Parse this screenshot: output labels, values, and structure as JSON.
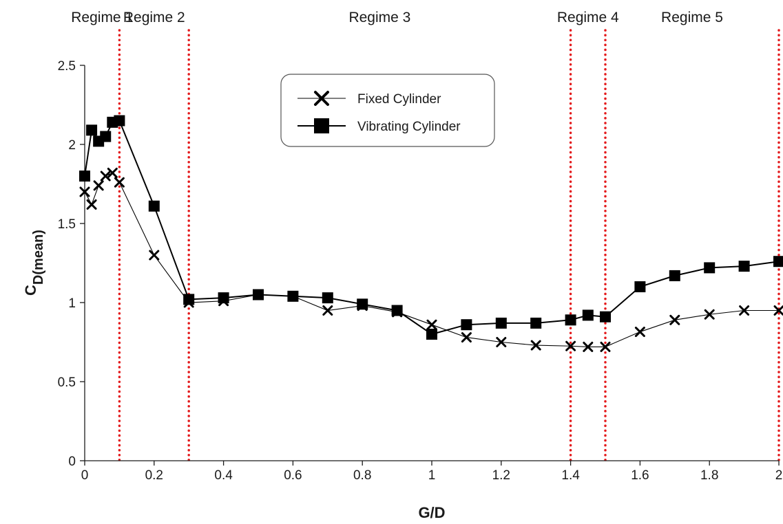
{
  "chart_data": {
    "type": "line",
    "title": "",
    "xlabel": "G/D",
    "ylabel_main": "C",
    "ylabel_sub": "D(mean)",
    "xlim": [
      0,
      2
    ],
    "ylim": [
      0,
      2.5
    ],
    "x_ticks": [
      0,
      0.2,
      0.4,
      0.6,
      0.8,
      1,
      1.2,
      1.4,
      1.6,
      1.8,
      2
    ],
    "x_tick_labels": [
      "0",
      "0.2",
      "0.4",
      "0.6",
      "0.8",
      "1",
      "1.2",
      "1.4",
      "1.6",
      "1.8",
      "2"
    ],
    "y_ticks": [
      0,
      0.5,
      1,
      1.5,
      2,
      2.5
    ],
    "y_tick_labels": [
      "0",
      "0.5",
      "1",
      "1.5",
      "2",
      "2.5"
    ],
    "grid": false,
    "legend_position": "top-center",
    "regime_boundaries": [
      0.1,
      0.3,
      1.4,
      1.5,
      2
    ],
    "boundary_color": "#e41a1c",
    "regimes": [
      {
        "label": "Regime 1",
        "x_center": 0.05
      },
      {
        "label": "Regime 2",
        "x_center": 0.2
      },
      {
        "label": "Regime 3",
        "x_center": 0.85
      },
      {
        "label": "Regime 4",
        "x_center": 1.45
      },
      {
        "label": "Regime 5",
        "x_center": 1.75
      }
    ],
    "series": [
      {
        "name": "Fixed Cylinder",
        "marker": "x",
        "color": "#000000",
        "x": [
          0,
          0.02,
          0.04,
          0.06,
          0.08,
          0.1,
          0.2,
          0.3,
          0.4,
          0.5,
          0.6,
          0.7,
          0.8,
          0.9,
          1,
          1.1,
          1.2,
          1.3,
          1.4,
          1.45,
          1.5,
          1.6,
          1.7,
          1.8,
          1.9,
          2
        ],
        "values": [
          1.7,
          1.62,
          1.74,
          1.8,
          1.82,
          1.76,
          1.3,
          1.0,
          1.01,
          1.05,
          1.04,
          0.95,
          0.98,
          0.94,
          0.86,
          0.78,
          0.75,
          0.73,
          0.725,
          0.72,
          0.72,
          0.815,
          0.89,
          0.925,
          0.95,
          0.95
        ]
      },
      {
        "name": "Vibrating Cylinder",
        "marker": "square",
        "color": "#000000",
        "x": [
          0,
          0.02,
          0.04,
          0.06,
          0.08,
          0.1,
          0.2,
          0.3,
          0.4,
          0.5,
          0.6,
          0.7,
          0.8,
          0.9,
          1,
          1.1,
          1.2,
          1.3,
          1.4,
          1.45,
          1.5,
          1.6,
          1.7,
          1.8,
          1.9,
          2
        ],
        "values": [
          1.8,
          2.09,
          2.02,
          2.05,
          2.14,
          2.15,
          1.61,
          1.02,
          1.03,
          1.05,
          1.04,
          1.03,
          0.99,
          0.95,
          0.8,
          0.86,
          0.87,
          0.87,
          0.89,
          0.92,
          0.91,
          1.1,
          1.17,
          1.22,
          1.23,
          1.26
        ]
      }
    ]
  }
}
